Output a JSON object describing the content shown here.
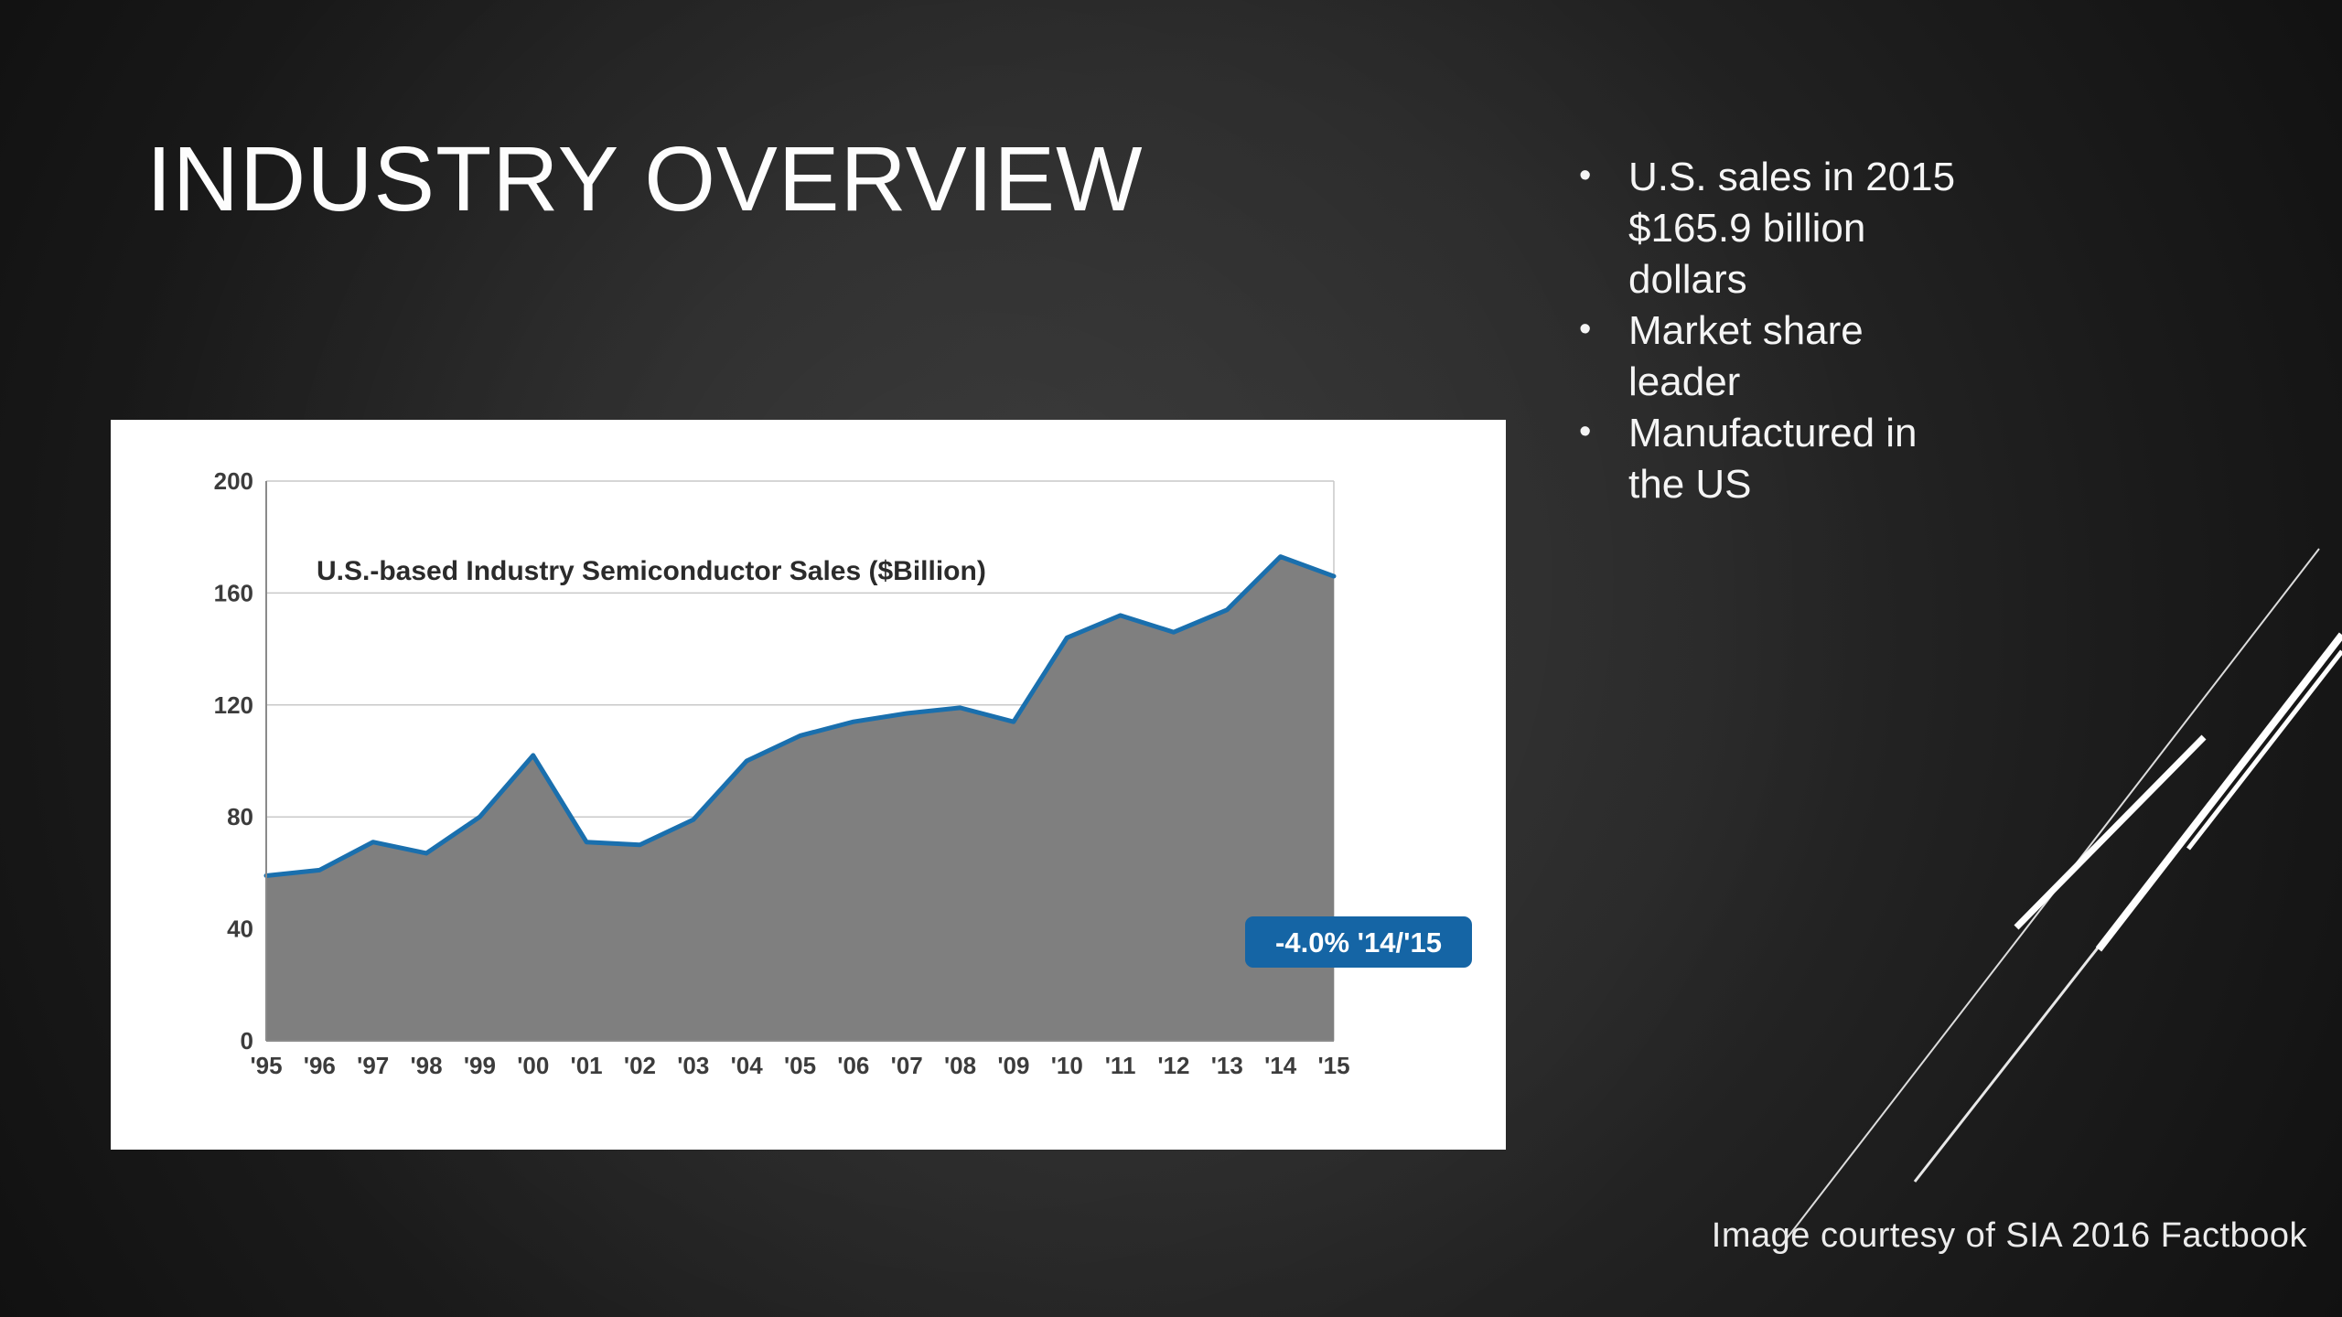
{
  "slide": {
    "title": "INDUSTRY OVERVIEW",
    "bullets": [
      "U.S. sales in 2015\n$165.9 billion\ndollars",
      "Market share\nleader",
      "Manufactured in\nthe US"
    ],
    "caption": "Image courtesy of SIA 2016 Factbook"
  },
  "chart_data": {
    "type": "area",
    "title": "U.S.-based Industry Semiconductor Sales ($Billion)",
    "x": [
      "'95",
      "'96",
      "'97",
      "'98",
      "'99",
      "'00",
      "'01",
      "'02",
      "'03",
      "'04",
      "'05",
      "'06",
      "'07",
      "'08",
      "'09",
      "'10",
      "'11",
      "'12",
      "'13",
      "'14",
      "'15"
    ],
    "values": [
      59,
      61,
      71,
      67,
      80,
      102,
      71,
      70,
      79,
      100,
      109,
      114,
      117,
      119,
      114,
      144,
      152,
      146,
      154,
      173,
      166
    ],
    "xlabel": "",
    "ylabel": "",
    "ylim": [
      0,
      200
    ],
    "yticks": [
      0,
      40,
      80,
      120,
      160,
      200
    ],
    "grid": true,
    "legend": "none",
    "annotation": "-4.0% '14/'15",
    "line_color": "#1a6fad",
    "fill_color": "#7f7f7f",
    "annotation_bg": "#1565a5",
    "plot_bg": "#ffffff"
  }
}
